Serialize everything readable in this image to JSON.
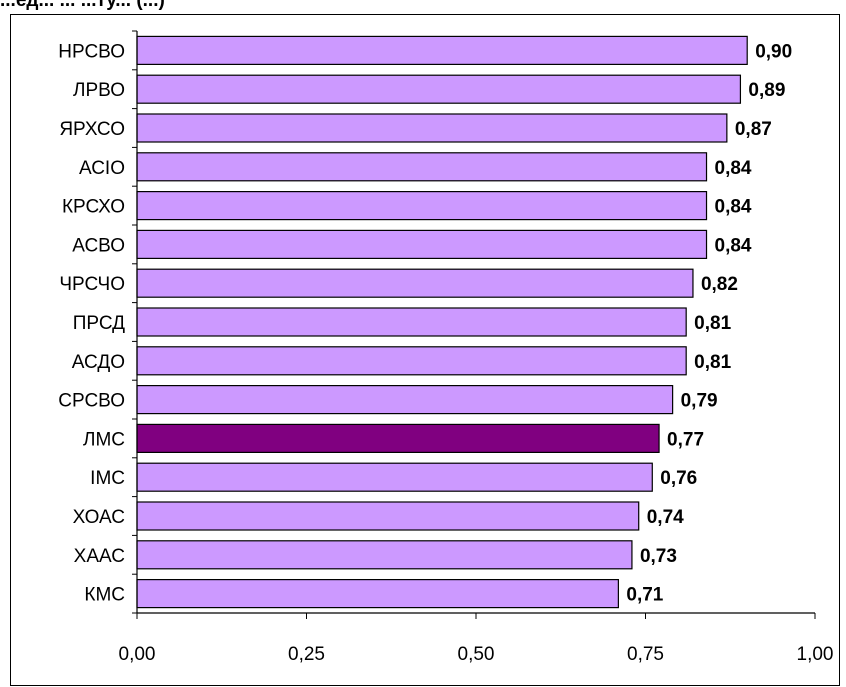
{
  "header": {
    "title_fragment": "...ед... ... ...ту...  (...)"
  },
  "chart_data": {
    "type": "bar",
    "orientation": "horizontal",
    "title": "",
    "xlabel": "",
    "ylabel": "",
    "categories": [
      "НРСВО",
      "ЛРВО",
      "ЯРХСО",
      "АСІО",
      "КРСХО",
      "АСВО",
      "ЧРСЧО",
      "ПРСД",
      "АСДО",
      "СРСВО",
      "ЛМС",
      "ІМС",
      "ХОАС",
      "ХААС",
      "КМС"
    ],
    "values": [
      0.9,
      0.89,
      0.87,
      0.84,
      0.84,
      0.84,
      0.82,
      0.81,
      0.81,
      0.79,
      0.77,
      0.76,
      0.74,
      0.73,
      0.71
    ],
    "value_labels": [
      "0,90",
      "0,89",
      "0,87",
      "0,84",
      "0,84",
      "0,84",
      "0,82",
      "0,81",
      "0,81",
      "0,79",
      "0,77",
      "0,76",
      "0,74",
      "0,73",
      "0,71"
    ],
    "xlim": [
      0,
      1
    ],
    "x_ticks": [
      0,
      0.25,
      0.5,
      0.75,
      1.0
    ],
    "x_tick_labels": [
      "0,00",
      "0,25",
      "0,50",
      "0,75",
      "1,00"
    ],
    "grid": false,
    "legend": "none",
    "colors": {
      "bar": "#cc99ff",
      "highlight": "#800080",
      "edge": "#000000"
    },
    "highlight_category": "ЛМС"
  }
}
